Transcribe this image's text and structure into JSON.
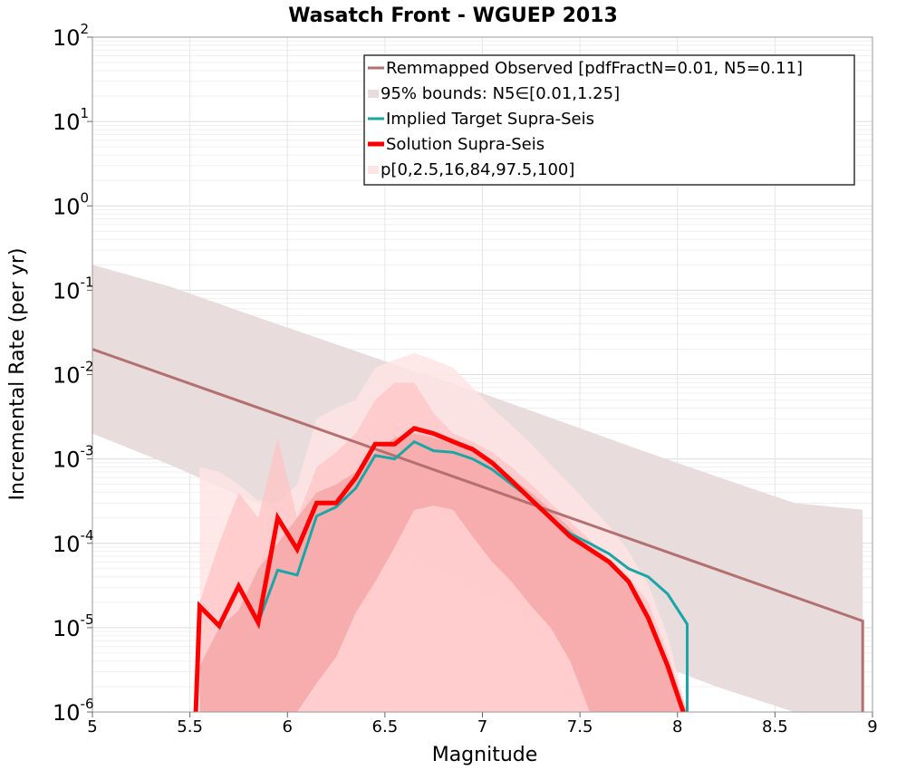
{
  "chart_data": {
    "type": "line",
    "title": "Wasatch Front - WGUEP 2013",
    "xlabel": "Magnitude",
    "ylabel": "Incremental Rate (per yr)",
    "xlim": [
      5,
      9
    ],
    "ylim_log10": [
      -6,
      2
    ],
    "xticks": [
      "5",
      "5.5",
      "6",
      "6.5",
      "7",
      "7.5",
      "8",
      "8.5",
      "9"
    ],
    "yticks": [
      {
        "base": "10",
        "exp": "-6"
      },
      {
        "base": "10",
        "exp": "-5"
      },
      {
        "base": "10",
        "exp": "-4"
      },
      {
        "base": "10",
        "exp": "-3"
      },
      {
        "base": "10",
        "exp": "-2"
      },
      {
        "base": "10",
        "exp": "-1"
      },
      {
        "base": "10",
        "exp": "0"
      },
      {
        "base": "10",
        "exp": "1"
      },
      {
        "base": "10",
        "exp": "2"
      }
    ],
    "grid": true,
    "legend_position": "top-right",
    "colors": {
      "remapped": "#b47070",
      "bounds": "#e8dcdc",
      "target": "#1aa6a6",
      "solution": "#ff0000",
      "p_outer": "#ffe4e4",
      "p_mid": "#ffc4c4",
      "p_inner": "#f4a0a0"
    },
    "legend": [
      {
        "key": "remapped",
        "label": "Remmapped Observed [pdfFractN=0.01, N5=0.11]"
      },
      {
        "key": "bounds",
        "label": "95% bounds: N5∈[0.01,1.25]"
      },
      {
        "key": "target",
        "label": "Implied Target Supra-Seis"
      },
      {
        "key": "solution",
        "label": "Solution Supra-Seis"
      },
      {
        "key": "pct",
        "label": "p[0,2.5,16,84,97.5,100]"
      }
    ],
    "series": [
      {
        "name": "Remmapped Observed [pdfFractN=0.01, N5=0.11]",
        "x": [
          5.0,
          8.95,
          8.95
        ],
        "y": [
          0.02,
          1.2e-05,
          1e-06
        ]
      },
      {
        "name": "95% bounds upper",
        "x": [
          5.0,
          5.4,
          5.8,
          6.2,
          6.6,
          7.0,
          7.4,
          7.8,
          8.2,
          8.6,
          8.95
        ],
        "y": [
          0.2,
          0.11,
          0.052,
          0.025,
          0.012,
          0.006,
          0.0028,
          0.0013,
          0.00062,
          0.0003,
          0.00025
        ]
      },
      {
        "name": "95% bounds lower",
        "x": [
          5.0,
          5.4,
          5.8,
          6.2,
          6.6,
          7.0,
          7.4,
          7.8,
          8.2,
          8.6,
          8.95
        ],
        "y": [
          0.002,
          0.00085,
          0.00033,
          0.00014,
          6e-05,
          2.5e-05,
          1e-05,
          4.5e-06,
          2e-06,
          1e-06,
          1e-06
        ]
      },
      {
        "name": "Implied Target Supra-Seis",
        "x": [
          5.55,
          5.65,
          5.75,
          5.85,
          5.95,
          6.05,
          6.15,
          6.25,
          6.35,
          6.45,
          6.55,
          6.65,
          6.75,
          6.85,
          6.95,
          7.05,
          7.15,
          7.25,
          7.35,
          7.45,
          7.55,
          7.65,
          7.75,
          7.85,
          7.95,
          8.05,
          8.05
        ],
        "y": [
          1.8e-05,
          1.05e-05,
          3.1e-05,
          1.15e-05,
          4.8e-05,
          4.2e-05,
          0.00021,
          0.00027,
          0.00045,
          0.0011,
          0.001,
          0.0016,
          0.00125,
          0.0012,
          0.001,
          0.00075,
          0.0005,
          0.00033,
          0.0002,
          0.00013,
          0.0001,
          7.5e-05,
          5e-05,
          4e-05,
          2.5e-05,
          1.1e-05,
          1e-06
        ]
      },
      {
        "name": "Solution Supra-Seis",
        "x": [
          5.53,
          5.55,
          5.65,
          5.75,
          5.85,
          5.95,
          6.05,
          6.15,
          6.25,
          6.35,
          6.45,
          6.55,
          6.65,
          6.75,
          6.85,
          6.95,
          7.05,
          7.15,
          7.25,
          7.35,
          7.45,
          7.55,
          7.65,
          7.75,
          7.85,
          7.95,
          8.03
        ],
        "y": [
          1e-06,
          1.8e-05,
          1.05e-05,
          3.1e-05,
          1.15e-05,
          0.0002,
          8.5e-05,
          0.0003,
          0.0003,
          0.0006,
          0.0015,
          0.0015,
          0.0023,
          0.002,
          0.0016,
          0.0013,
          0.0009,
          0.00055,
          0.00033,
          0.0002,
          0.00012,
          8.5e-05,
          6e-05,
          3.5e-05,
          1.3e-05,
          3.5e-06,
          1e-06
        ]
      },
      {
        "name": "p0-p100",
        "x": [
          5.55,
          5.65,
          5.75,
          5.85,
          5.95,
          6.05,
          6.15,
          6.25,
          6.35,
          6.45,
          6.55,
          6.65,
          6.75,
          6.85,
          6.95,
          7.05,
          7.15,
          7.25,
          7.35,
          7.45,
          7.55,
          7.65,
          7.75,
          7.85,
          7.95,
          8.05
        ],
        "upper": [
          0.0008,
          0.0007,
          0.0005,
          0.00032,
          0.0003,
          0.0005,
          0.003,
          0.004,
          0.005,
          0.012,
          0.015,
          0.018,
          0.015,
          0.012,
          0.007,
          0.004,
          0.0025,
          0.0015,
          0.00085,
          0.0005,
          0.00028,
          0.00016,
          8e-05,
          3.2e-05,
          8e-06,
          1e-06
        ],
        "lower": [
          1e-06,
          1e-06,
          1e-06,
          1e-06,
          1e-06,
          1e-06,
          1e-06,
          1e-06,
          1e-06,
          1e-06,
          1e-06,
          1e-06,
          1e-06,
          1e-06,
          1e-06,
          1e-06,
          1e-06,
          1e-06,
          1e-06,
          1e-06,
          1e-06,
          1e-06,
          1e-06,
          1e-06,
          1e-06,
          1e-06
        ]
      },
      {
        "name": "p2.5-p97.5",
        "x": [
          5.55,
          5.65,
          5.75,
          5.85,
          5.95,
          6.05,
          6.15,
          6.25,
          6.35,
          6.45,
          6.55,
          6.65,
          6.75,
          6.85,
          6.95,
          7.05,
          7.15,
          7.25,
          7.35,
          7.45,
          7.55,
          7.65,
          7.75,
          7.85,
          7.95,
          8.05
        ],
        "upper": [
          2e-05,
          0.0001,
          0.0004,
          0.0002,
          0.0018,
          0.0002,
          0.0008,
          0.0012,
          0.002,
          0.005,
          0.008,
          0.008,
          0.0035,
          0.002,
          0.0016,
          0.0012,
          0.0008,
          0.0005,
          0.0003,
          0.00018,
          0.00011,
          6.5e-05,
          4e-05,
          2e-05,
          5e-06,
          1e-06
        ],
        "lower": [
          1e-06,
          1e-06,
          1e-06,
          1e-06,
          1e-06,
          1e-06,
          1e-06,
          1e-06,
          1e-06,
          1e-06,
          1e-06,
          1e-06,
          1e-06,
          1e-06,
          1e-06,
          1e-06,
          1e-06,
          1e-06,
          1e-06,
          1e-06,
          1e-06,
          1e-06,
          1e-06,
          1e-06,
          1e-06,
          1e-06
        ]
      },
      {
        "name": "p16-p84",
        "x": [
          5.55,
          5.65,
          5.75,
          5.85,
          5.95,
          6.05,
          6.15,
          6.25,
          6.35,
          6.45,
          6.55,
          6.65,
          6.75,
          6.85,
          6.95,
          7.05,
          7.15,
          7.25,
          7.35,
          7.45,
          7.55,
          7.65,
          7.75,
          7.85,
          7.95,
          8.05
        ],
        "upper": [
          3.5e-06,
          1e-05,
          1.6e-05,
          5e-05,
          0.0001,
          0.0002,
          0.0004,
          0.0005,
          0.0007,
          0.0012,
          0.0018,
          0.002,
          0.0018,
          0.0015,
          0.0012,
          0.0009,
          0.0006,
          0.0004,
          0.00025,
          0.00015,
          9e-05,
          5.5e-05,
          3e-05,
          1.2e-05,
          3e-06,
          1e-06
        ],
        "lower": [
          1e-06,
          1e-06,
          1e-06,
          1e-06,
          1e-06,
          1e-06,
          2.2e-06,
          4.5e-06,
          1.5e-05,
          3.5e-05,
          9e-05,
          0.00025,
          0.00028,
          0.00025,
          0.00012,
          6e-05,
          3.5e-05,
          1.8e-05,
          1e-05,
          4e-06,
          1e-06,
          1e-06,
          1e-06,
          1e-06,
          1e-06,
          1e-06
        ]
      }
    ]
  }
}
